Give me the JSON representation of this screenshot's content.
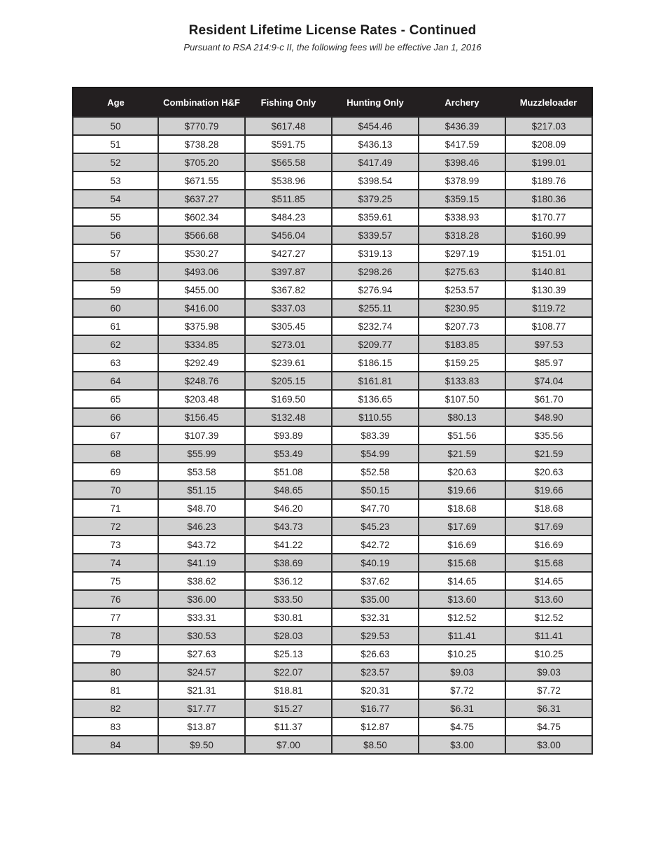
{
  "page": {
    "title": "Resident Lifetime License Rates - Continued",
    "subtitle": "Pursuant to RSA 214:9-c II, the following fees will be effective Jan 1, 2016"
  },
  "colors": {
    "header_bg": "#231f20",
    "header_text": "#ffffff",
    "row_shaded_bg": "#d1d1d1",
    "row_plain_bg": "#ffffff",
    "border": "#2b2b2b"
  },
  "table": {
    "columns": [
      "Age",
      "Combination H&F",
      "Fishing Only",
      "Hunting Only",
      "Archery",
      "Muzzleloader"
    ],
    "rows": [
      [
        "50",
        "$770.79",
        "$617.48",
        "$454.46",
        "$436.39",
        "$217.03"
      ],
      [
        "51",
        "$738.28",
        "$591.75",
        "$436.13",
        "$417.59",
        "$208.09"
      ],
      [
        "52",
        "$705.20",
        "$565.58",
        "$417.49",
        "$398.46",
        "$199.01"
      ],
      [
        "53",
        "$671.55",
        "$538.96",
        "$398.54",
        "$378.99",
        "$189.76"
      ],
      [
        "54",
        "$637.27",
        "$511.85",
        "$379.25",
        "$359.15",
        "$180.36"
      ],
      [
        "55",
        "$602.34",
        "$484.23",
        "$359.61",
        "$338.93",
        "$170.77"
      ],
      [
        "56",
        "$566.68",
        "$456.04",
        "$339.57",
        "$318.28",
        "$160.99"
      ],
      [
        "57",
        "$530.27",
        "$427.27",
        "$319.13",
        "$297.19",
        "$151.01"
      ],
      [
        "58",
        "$493.06",
        "$397.87",
        "$298.26",
        "$275.63",
        "$140.81"
      ],
      [
        "59",
        "$455.00",
        "$367.82",
        "$276.94",
        "$253.57",
        "$130.39"
      ],
      [
        "60",
        "$416.00",
        "$337.03",
        "$255.11",
        "$230.95",
        "$119.72"
      ],
      [
        "61",
        "$375.98",
        "$305.45",
        "$232.74",
        "$207.73",
        "$108.77"
      ],
      [
        "62",
        "$334.85",
        "$273.01",
        "$209.77",
        "$183.85",
        "$97.53"
      ],
      [
        "63",
        "$292.49",
        "$239.61",
        "$186.15",
        "$159.25",
        "$85.97"
      ],
      [
        "64",
        "$248.76",
        "$205.15",
        "$161.81",
        "$133.83",
        "$74.04"
      ],
      [
        "65",
        "$203.48",
        "$169.50",
        "$136.65",
        "$107.50",
        "$61.70"
      ],
      [
        "66",
        "$156.45",
        "$132.48",
        "$110.55",
        "$80.13",
        "$48.90"
      ],
      [
        "67",
        "$107.39",
        "$93.89",
        "$83.39",
        "$51.56",
        "$35.56"
      ],
      [
        "68",
        "$55.99",
        "$53.49",
        "$54.99",
        "$21.59",
        "$21.59"
      ],
      [
        "69",
        "$53.58",
        "$51.08",
        "$52.58",
        "$20.63",
        "$20.63"
      ],
      [
        "70",
        "$51.15",
        "$48.65",
        "$50.15",
        "$19.66",
        "$19.66"
      ],
      [
        "71",
        "$48.70",
        "$46.20",
        "$47.70",
        "$18.68",
        "$18.68"
      ],
      [
        "72",
        "$46.23",
        "$43.73",
        "$45.23",
        "$17.69",
        "$17.69"
      ],
      [
        "73",
        "$43.72",
        "$41.22",
        "$42.72",
        "$16.69",
        "$16.69"
      ],
      [
        "74",
        "$41.19",
        "$38.69",
        "$40.19",
        "$15.68",
        "$15.68"
      ],
      [
        "75",
        "$38.62",
        "$36.12",
        "$37.62",
        "$14.65",
        "$14.65"
      ],
      [
        "76",
        "$36.00",
        "$33.50",
        "$35.00",
        "$13.60",
        "$13.60"
      ],
      [
        "77",
        "$33.31",
        "$30.81",
        "$32.31",
        "$12.52",
        "$12.52"
      ],
      [
        "78",
        "$30.53",
        "$28.03",
        "$29.53",
        "$11.41",
        "$11.41"
      ],
      [
        "79",
        "$27.63",
        "$25.13",
        "$26.63",
        "$10.25",
        "$10.25"
      ],
      [
        "80",
        "$24.57",
        "$22.07",
        "$23.57",
        "$9.03",
        "$9.03"
      ],
      [
        "81",
        "$21.31",
        "$18.81",
        "$20.31",
        "$7.72",
        "$7.72"
      ],
      [
        "82",
        "$17.77",
        "$15.27",
        "$16.77",
        "$6.31",
        "$6.31"
      ],
      [
        "83",
        "$13.87",
        "$11.37",
        "$12.87",
        "$4.75",
        "$4.75"
      ],
      [
        "84",
        "$9.50",
        "$7.00",
        "$8.50",
        "$3.00",
        "$3.00"
      ]
    ]
  }
}
